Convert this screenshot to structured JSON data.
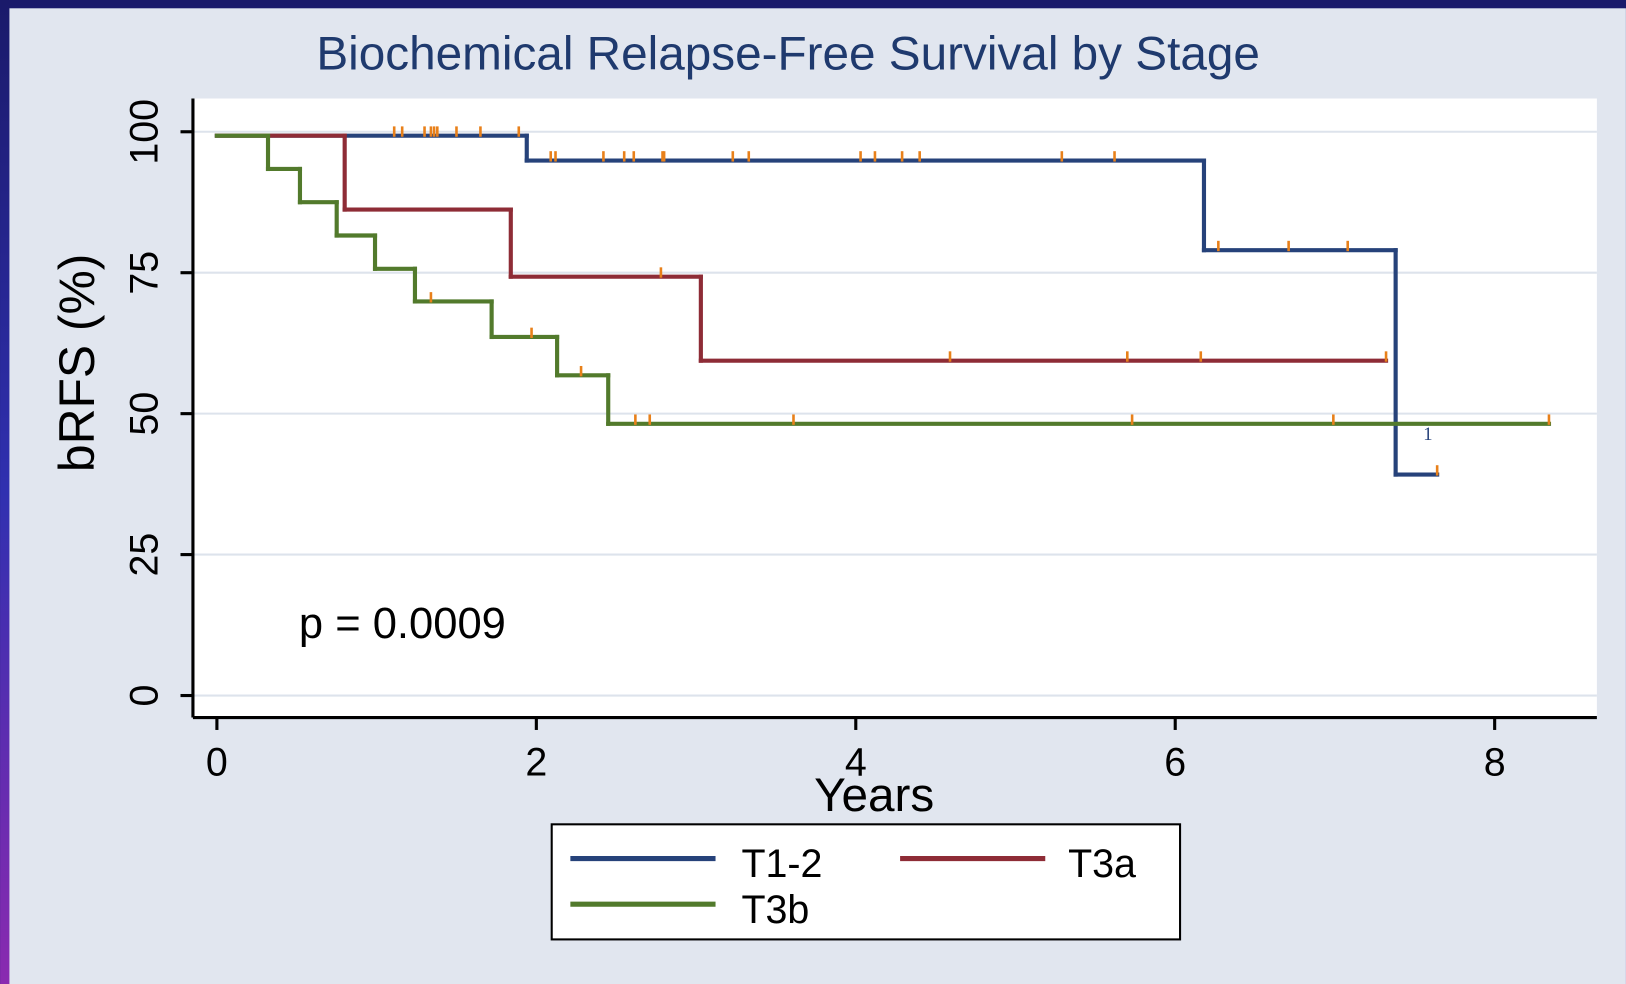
{
  "chart_data": {
    "type": "step",
    "title": "Biochemical Relapse-Free Survival by Stage",
    "x_label": "Years",
    "y_label": "bRFS (%)",
    "xlim": [
      -0.15,
      8.64
    ],
    "ylim": [
      -3.9,
      105.9
    ],
    "xticks": [
      0,
      2,
      4,
      6,
      8
    ],
    "yticks": [
      0,
      25,
      50,
      75,
      100
    ],
    "grid": true,
    "legend": "bottom",
    "annotations": [
      "p = 0.0009",
      "1"
    ],
    "censor_color": "#e8801a",
    "series": [
      {
        "name": "T1-2",
        "color": "#26427a",
        "x": [
          0,
          1.94,
          6.18,
          7.38,
          7.64
        ],
        "values": [
          99.3,
          94.9,
          79.0,
          39.2,
          39.2
        ],
        "censored": {
          "x": [
            1.11,
            1.16,
            1.3,
            1.34,
            1.36,
            1.38,
            1.5,
            1.65,
            1.89,
            2.09,
            2.12,
            2.42,
            2.55,
            2.61,
            2.79,
            2.8,
            3.23,
            3.33,
            4.03,
            4.12,
            4.29,
            4.4,
            5.29,
            5.62,
            6.27,
            6.71,
            7.08,
            7.64
          ],
          "values": [
            99.3,
            99.3,
            99.3,
            99.3,
            99.3,
            99.3,
            99.3,
            99.3,
            99.3,
            94.9,
            94.9,
            94.9,
            94.9,
            94.9,
            94.9,
            94.9,
            94.9,
            94.9,
            94.9,
            94.9,
            94.9,
            94.9,
            94.9,
            94.9,
            79.0,
            79.0,
            79.0,
            39.2
          ]
        }
      },
      {
        "name": "T3a",
        "color": "#8e2c36",
        "x": [
          0,
          0.8,
          1.84,
          3.03,
          7.32
        ],
        "values": [
          99.3,
          86.2,
          74.3,
          59.4,
          59.4
        ],
        "censored": {
          "x": [
            2.78,
            4.59,
            5.7,
            6.16,
            7.32
          ],
          "values": [
            74.3,
            59.4,
            59.4,
            59.4,
            59.4
          ]
        }
      },
      {
        "name": "T3b",
        "color": "#527a2c",
        "x": [
          0,
          0.32,
          0.52,
          0.75,
          0.99,
          1.24,
          1.72,
          2.13,
          2.45,
          8.34
        ],
        "values": [
          99.3,
          93.4,
          87.5,
          81.6,
          75.7,
          69.9,
          63.6,
          56.8,
          48.2,
          48.2
        ],
        "censored": {
          "x": [
            1.34,
            1.97,
            2.28,
            2.62,
            2.71,
            3.61,
            5.73,
            6.99,
            8.34
          ],
          "values": [
            69.9,
            63.6,
            56.8,
            48.2,
            48.2,
            48.2,
            48.2,
            48.2,
            48.2
          ]
        }
      }
    ]
  }
}
